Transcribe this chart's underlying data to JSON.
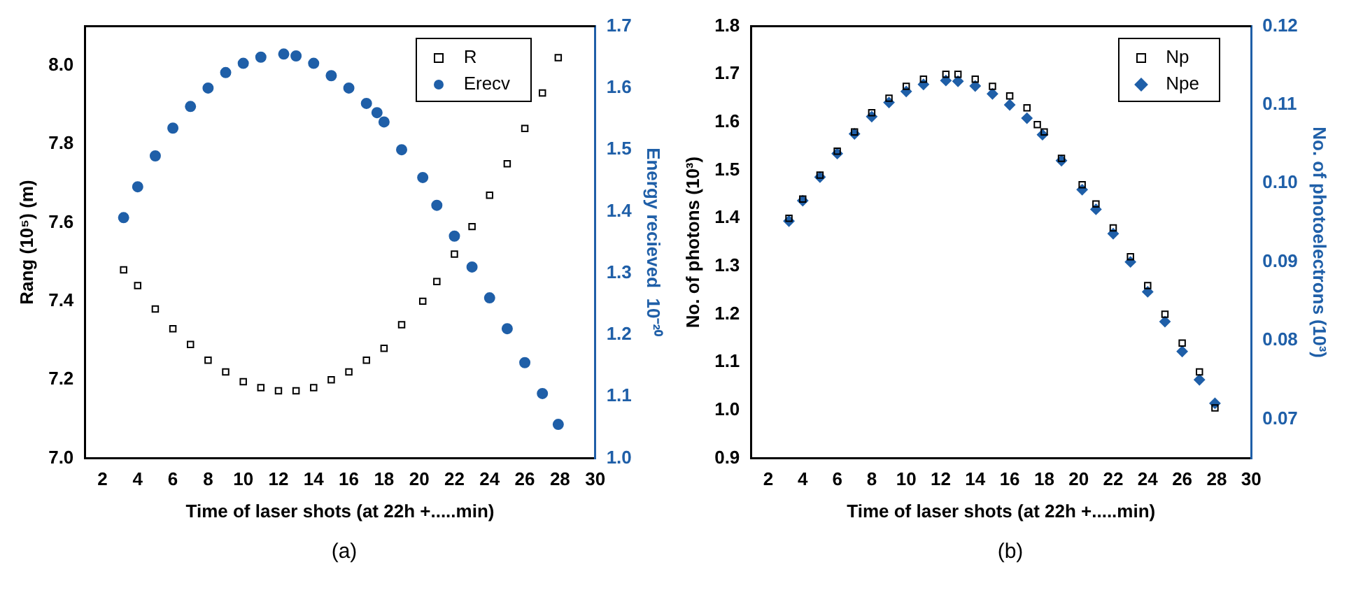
{
  "chart_data": [
    {
      "type": "scatter",
      "xlabel": "Time of laser shots (at 22h +.....min)",
      "ylabel": "Rang (10⁵) (m)",
      "y2label": "Energy recieved  10⁻²⁰",
      "annotations": [
        "(a)"
      ],
      "legend": "top right",
      "grid": false,
      "xlim": [
        1,
        30
      ],
      "xticks": [
        2,
        4,
        6,
        8,
        10,
        12,
        14,
        16,
        18,
        20,
        22,
        24,
        26,
        28,
        30
      ],
      "ylim": [
        7.0,
        8.1
      ],
      "yticks": [
        {
          "value": 7,
          "label": "7.0"
        },
        7.2,
        7.4,
        7.6,
        7.8,
        {
          "value": 8,
          "label": "8.0"
        }
      ],
      "y2lim": [
        1.0,
        1.7
      ],
      "y2ticks": [
        {
          "value": 1,
          "label": "1.0"
        },
        1.1,
        1.2,
        1.3,
        1.4,
        1.5,
        1.6,
        1.7
      ],
      "series": [
        {
          "name": "R",
          "color": "#000000",
          "marker": "square",
          "x": [
            3.2,
            4,
            5,
            6,
            7,
            8,
            9,
            10,
            11,
            12,
            13,
            14,
            15,
            16,
            17,
            18,
            19,
            20.2,
            21,
            22,
            23,
            24,
            25,
            26,
            27,
            27.9
          ],
          "values": [
            7.48,
            7.44,
            7.38,
            7.33,
            7.29,
            7.25,
            7.22,
            7.195,
            7.18,
            7.172,
            7.172,
            7.18,
            7.2,
            7.22,
            7.25,
            7.28,
            7.34,
            7.4,
            7.45,
            7.52,
            7.59,
            7.67,
            7.75,
            7.84,
            7.93,
            8.02
          ]
        },
        {
          "name": "Erecv",
          "color": "#1f5fa8",
          "marker": "circle",
          "axis": "y2",
          "x": [
            3.2,
            4,
            5,
            6,
            7,
            8,
            9,
            10,
            11,
            12.3,
            13,
            14,
            15,
            16,
            17,
            17.6,
            18,
            19,
            20.2,
            21,
            22,
            23,
            24,
            25,
            26,
            27,
            27.9
          ],
          "values": [
            1.39,
            1.44,
            1.49,
            1.535,
            1.57,
            1.6,
            1.625,
            1.64,
            1.65,
            1.655,
            1.652,
            1.64,
            1.62,
            1.6,
            1.575,
            1.56,
            1.545,
            1.5,
            1.455,
            1.41,
            1.36,
            1.31,
            1.26,
            1.21,
            1.155,
            1.105,
            1.055
          ]
        }
      ]
    },
    {
      "type": "scatter",
      "xlabel": "Time of laser shots (at 22h +.....min)",
      "ylabel": "No. of photons (10³)",
      "y2label": "No. of photoelectrons (10³)",
      "annotations": [
        "(b)"
      ],
      "legend": "top right",
      "grid": false,
      "xlim": [
        1,
        30
      ],
      "xticks": [
        2,
        4,
        6,
        8,
        10,
        12,
        14,
        16,
        18,
        20,
        22,
        24,
        26,
        28,
        30
      ],
      "ylim": [
        0.9,
        1.8
      ],
      "yticks": [
        0.9,
        {
          "value": 1,
          "label": "1.0"
        },
        1.1,
        1.2,
        1.3,
        1.4,
        1.5,
        1.6,
        1.7,
        1.8
      ],
      "y2lim": [
        0.065,
        0.12
      ],
      "y2ticks": [
        0.07,
        0.08,
        0.09,
        {
          "value": 0.1,
          "label": "0.10"
        },
        0.11,
        0.12
      ],
      "series": [
        {
          "name": "Np",
          "color": "#000000",
          "marker": "square",
          "x": [
            3.2,
            4,
            5,
            6,
            7,
            8,
            9,
            10,
            11,
            12.3,
            13,
            14,
            15,
            16,
            17,
            17.6,
            18,
            19,
            20.2,
            21,
            22,
            23,
            24,
            25,
            26,
            27,
            27.9
          ],
          "values": [
            1.4,
            1.44,
            1.49,
            1.54,
            1.58,
            1.62,
            1.65,
            1.675,
            1.69,
            1.7,
            1.7,
            1.69,
            1.675,
            1.655,
            1.63,
            1.595,
            1.58,
            1.525,
            1.47,
            1.43,
            1.38,
            1.32,
            1.26,
            1.2,
            1.14,
            1.08,
            1.005
          ]
        },
        {
          "name": "Npe",
          "color": "#1f5fa8",
          "marker": "diamond",
          "axis": "y2",
          "x": [
            3.2,
            4,
            5,
            6,
            7,
            8,
            9,
            10,
            11,
            12.3,
            13,
            14,
            15,
            16,
            17,
            17.9,
            19,
            20.2,
            21,
            22,
            23,
            24,
            25,
            26,
            27,
            27.9
          ],
          "values": [
            0.0952,
            0.0978,
            0.1008,
            0.1038,
            0.1063,
            0.1085,
            0.1103,
            0.1117,
            0.1126,
            0.1131,
            0.113,
            0.1124,
            0.1114,
            0.11,
            0.1083,
            0.1062,
            0.1029,
            0.0992,
            0.0967,
            0.0936,
            0.09,
            0.0862,
            0.0824,
            0.0786,
            0.075,
            0.072
          ]
        }
      ]
    }
  ]
}
